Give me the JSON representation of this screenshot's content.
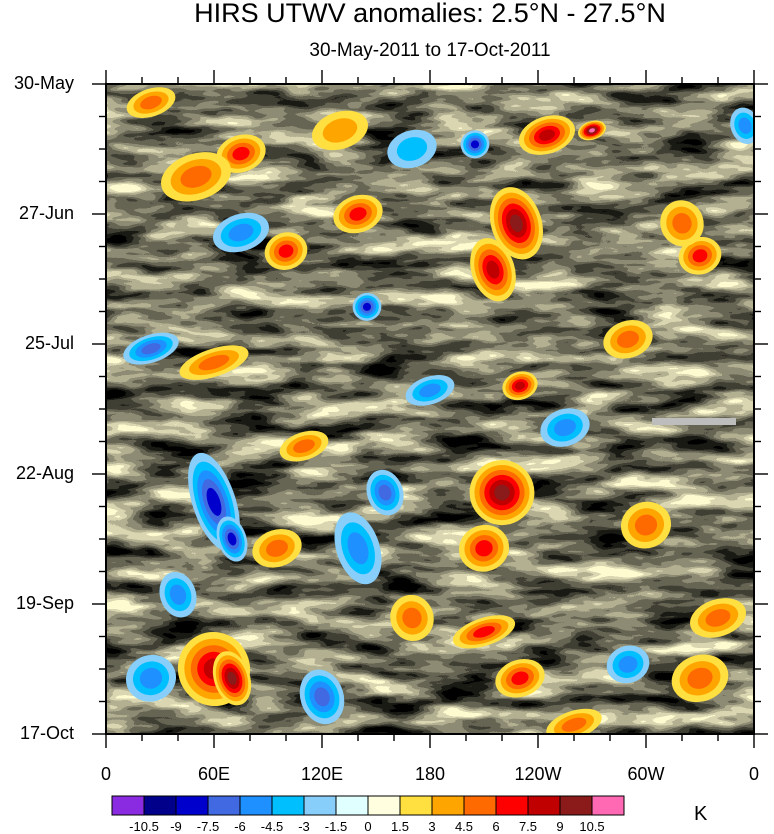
{
  "chart_data": {
    "type": "heatmap",
    "title": "HIRS UTWV anomalies: 2.5°N - 27.5°N",
    "subtitle": "30-May-2011 to 17-Oct-2011",
    "x_tick_labels": [
      "0",
      "60E",
      "120E",
      "180",
      "120W",
      "60W",
      "0"
    ],
    "x_ticks_deg_east": [
      0,
      60,
      120,
      180,
      240,
      300,
      360
    ],
    "y_tick_labels": [
      "30-May",
      "27-Jun",
      "25-Jul",
      "22-Aug",
      "19-Sep",
      "17-Oct"
    ],
    "y_ticks_day": [
      0,
      28,
      56,
      84,
      112,
      140
    ],
    "xlim": [
      0,
      360
    ],
    "ylim_days": [
      0,
      140
    ],
    "colorbar_unit": "K",
    "colorbar_labels": [
      "-10.5",
      "-9",
      "-7.5",
      "-6",
      "-4.5",
      "-3",
      "-1.5",
      "0",
      "1.5",
      "3",
      "4.5",
      "6",
      "7.5",
      "9",
      "10.5"
    ],
    "colorbar_levels": [
      -10.5,
      -9,
      -7.5,
      -6,
      -4.5,
      -3,
      -1.5,
      0,
      1.5,
      3,
      4.5,
      6,
      7.5,
      9,
      10.5
    ],
    "colors": [
      "#8a2be2",
      "#00008b",
      "#0000cd",
      "#4169e1",
      "#1e90ff",
      "#00bfff",
      "#87cefa",
      "#e0ffff",
      "#ffffe0",
      "#ffe040",
      "#ffa500",
      "#ff6a00",
      "#ff0000",
      "#c00000",
      "#8b1a1a",
      "#ff69b4"
    ],
    "features": [
      {
        "lon": 25,
        "day": 4,
        "value": 5,
        "rx": 14,
        "ry": 3
      },
      {
        "lon": 75,
        "day": 15,
        "value": 7,
        "rx": 14,
        "ry": 4
      },
      {
        "lon": 50,
        "day": 20,
        "value": 5,
        "rx": 20,
        "ry": 5
      },
      {
        "lon": 130,
        "day": 10,
        "value": 4,
        "rx": 16,
        "ry": 4
      },
      {
        "lon": 170,
        "day": 14,
        "value": -4,
        "rx": 14,
        "ry": 4
      },
      {
        "lon": 205,
        "day": 13,
        "value": -8,
        "rx": 8,
        "ry": 3
      },
      {
        "lon": 245,
        "day": 11,
        "value": 7.5,
        "rx": 16,
        "ry": 4
      },
      {
        "lon": 270,
        "day": 10,
        "value": 10.5,
        "rx": 8,
        "ry": 2
      },
      {
        "lon": 228,
        "day": 30,
        "value": 9,
        "rx": 14,
        "ry": 8
      },
      {
        "lon": 215,
        "day": 40,
        "value": 7.5,
        "rx": 12,
        "ry": 7
      },
      {
        "lon": 75,
        "day": 32,
        "value": -5,
        "rx": 16,
        "ry": 4
      },
      {
        "lon": 100,
        "day": 36,
        "value": 6,
        "rx": 12,
        "ry": 4
      },
      {
        "lon": 145,
        "day": 48,
        "value": -8,
        "rx": 8,
        "ry": 3
      },
      {
        "lon": 140,
        "day": 28,
        "value": 6,
        "rx": 14,
        "ry": 4
      },
      {
        "lon": 330,
        "day": 37,
        "value": 7,
        "rx": 12,
        "ry": 4
      },
      {
        "lon": 320,
        "day": 30,
        "value": 4.5,
        "rx": 12,
        "ry": 5
      },
      {
        "lon": 25,
        "day": 57,
        "value": -6,
        "rx": 16,
        "ry": 3
      },
      {
        "lon": 60,
        "day": 60,
        "value": 4.5,
        "rx": 20,
        "ry": 3
      },
      {
        "lon": 230,
        "day": 65,
        "value": 7.5,
        "rx": 10,
        "ry": 3
      },
      {
        "lon": 180,
        "day": 66,
        "value": -4.5,
        "rx": 14,
        "ry": 3
      },
      {
        "lon": 220,
        "day": 88,
        "value": 9,
        "rx": 18,
        "ry": 7
      },
      {
        "lon": 210,
        "day": 100,
        "value": 6,
        "rx": 14,
        "ry": 5
      },
      {
        "lon": 60,
        "day": 90,
        "value": -7.5,
        "rx": 12,
        "ry": 11
      },
      {
        "lon": 70,
        "day": 98,
        "value": -8,
        "rx": 8,
        "ry": 5
      },
      {
        "lon": 140,
        "day": 100,
        "value": -5,
        "rx": 12,
        "ry": 8
      },
      {
        "lon": 155,
        "day": 88,
        "value": -6,
        "rx": 10,
        "ry": 5
      },
      {
        "lon": 95,
        "day": 100,
        "value": 5,
        "rx": 14,
        "ry": 4
      },
      {
        "lon": 300,
        "day": 95,
        "value": 5,
        "rx": 14,
        "ry": 5
      },
      {
        "lon": 340,
        "day": 115,
        "value": 4.5,
        "rx": 16,
        "ry": 4
      },
      {
        "lon": 60,
        "day": 126,
        "value": 7.5,
        "rx": 20,
        "ry": 8
      },
      {
        "lon": 70,
        "day": 128,
        "value": 9,
        "rx": 10,
        "ry": 6
      },
      {
        "lon": 25,
        "day": 128,
        "value": -4.5,
        "rx": 14,
        "ry": 5
      },
      {
        "lon": 120,
        "day": 132,
        "value": -6,
        "rx": 12,
        "ry": 6
      },
      {
        "lon": 210,
        "day": 118,
        "value": 6,
        "rx": 18,
        "ry": 3
      },
      {
        "lon": 230,
        "day": 128,
        "value": 6,
        "rx": 14,
        "ry": 4
      },
      {
        "lon": 260,
        "day": 138,
        "value": 5,
        "rx": 16,
        "ry": 3
      },
      {
        "lon": 330,
        "day": 128,
        "value": 4.5,
        "rx": 16,
        "ry": 5
      },
      {
        "lon": 290,
        "day": 125,
        "value": -4.5,
        "rx": 12,
        "ry": 4
      },
      {
        "lon": 255,
        "day": 74,
        "value": -4.5,
        "rx": 14,
        "ry": 4
      },
      {
        "lon": 290,
        "day": 55,
        "value": 4.5,
        "rx": 14,
        "ry": 4
      },
      {
        "lon": 355,
        "day": 9,
        "value": -4.5,
        "rx": 8,
        "ry": 4
      },
      {
        "lon": 170,
        "day": 115,
        "value": 4.5,
        "rx": 12,
        "ry": 5
      },
      {
        "lon": 40,
        "day": 110,
        "value": -5,
        "rx": 10,
        "ry": 5
      },
      {
        "lon": 110,
        "day": 78,
        "value": 4.5,
        "rx": 14,
        "ry": 3
      }
    ]
  }
}
